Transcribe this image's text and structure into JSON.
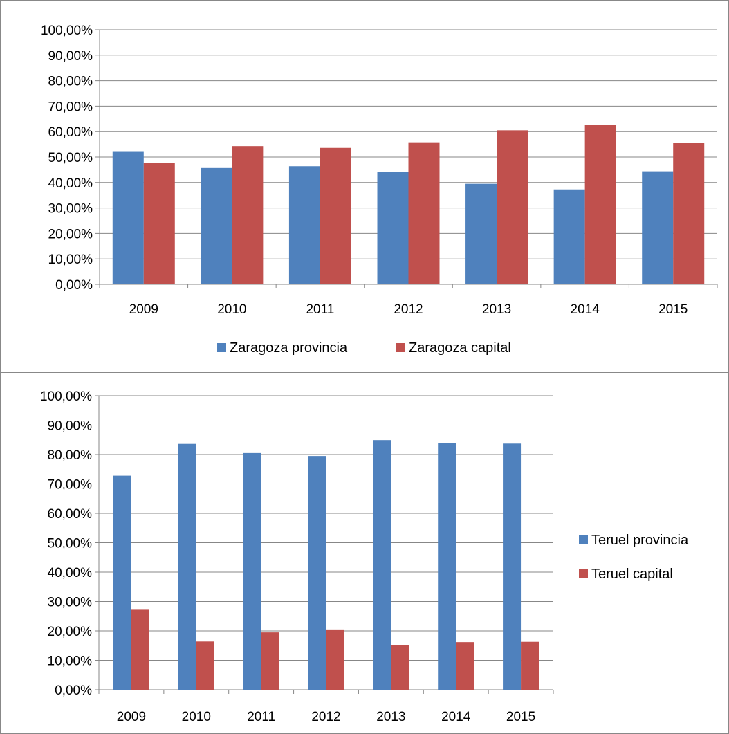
{
  "chart_data": [
    {
      "type": "bar",
      "title": "",
      "categories": [
        "2009",
        "2010",
        "2011",
        "2012",
        "2013",
        "2014",
        "2015"
      ],
      "series": [
        {
          "name": "Zaragoza provincia",
          "color": "#4F81BD",
          "values": [
            52.3,
            45.7,
            46.4,
            44.2,
            39.5,
            37.3,
            44.4
          ]
        },
        {
          "name": "Zaragoza capital",
          "color": "#C0504D",
          "values": [
            47.7,
            54.3,
            53.6,
            55.8,
            60.5,
            62.7,
            55.6
          ]
        }
      ],
      "ylim": [
        0,
        100
      ],
      "yticks": [
        "0,00%",
        "10,00%",
        "20,00%",
        "30,00%",
        "40,00%",
        "50,00%",
        "60,00%",
        "70,00%",
        "80,00%",
        "90,00%",
        "100,00%"
      ],
      "grid": true,
      "legend_position": "bottom"
    },
    {
      "type": "bar",
      "title": "",
      "categories": [
        "2009",
        "2010",
        "2011",
        "2012",
        "2013",
        "2014",
        "2015"
      ],
      "series": [
        {
          "name": "Teruel provincia",
          "color": "#4F81BD",
          "values": [
            72.8,
            83.6,
            80.5,
            79.5,
            84.9,
            83.8,
            83.7
          ]
        },
        {
          "name": "Teruel capital",
          "color": "#C0504D",
          "values": [
            27.2,
            16.4,
            19.5,
            20.5,
            15.1,
            16.2,
            16.3
          ]
        }
      ],
      "ylim": [
        0,
        100
      ],
      "yticks": [
        "0,00%",
        "10,00%",
        "20,00%",
        "30,00%",
        "40,00%",
        "50,00%",
        "60,00%",
        "70,00%",
        "80,00%",
        "90,00%",
        "100,00%"
      ],
      "grid": true,
      "legend_position": "right"
    }
  ]
}
